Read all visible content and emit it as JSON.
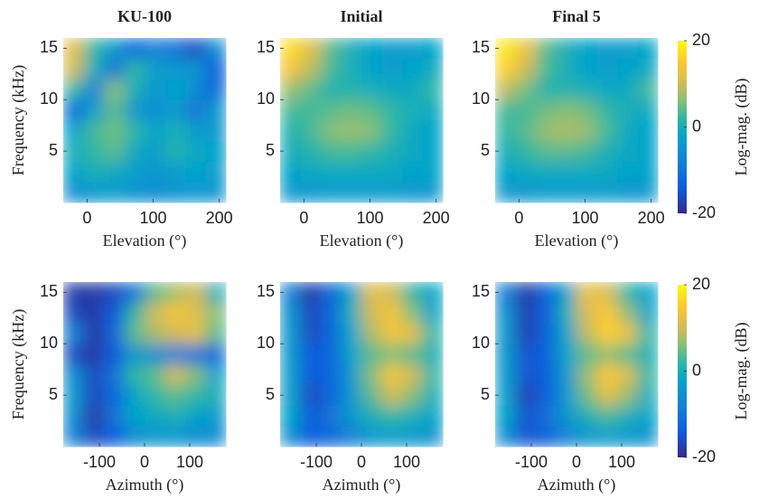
{
  "chart_data": [
    {
      "type": "heatmap",
      "title": "KU-100",
      "xlabel": "Elevation (°)",
      "ylabel": "Frequency (kHz)",
      "xlim": [
        -36,
        210
      ],
      "ylim": [
        0,
        16
      ],
      "xticks": [
        0,
        100,
        200
      ],
      "yticks": [
        5,
        10,
        15
      ],
      "colormap": "parula",
      "clim": [
        -20,
        20
      ],
      "z": [
        [
          -6,
          -4,
          -3,
          -5,
          -6,
          -5,
          -4,
          -5
        ],
        [
          -2,
          0,
          -1,
          -3,
          -4,
          -3,
          -2,
          -3
        ],
        [
          0,
          2,
          4,
          -1,
          -3,
          1,
          -1,
          -2
        ],
        [
          -2,
          3,
          5,
          2,
          -2,
          0,
          -3,
          -4
        ],
        [
          -12,
          -3,
          4,
          -4,
          -6,
          -3,
          -10,
          -4
        ],
        [
          2,
          -8,
          6,
          0,
          -4,
          -2,
          -6,
          -12
        ],
        [
          10,
          0,
          -10,
          2,
          -3,
          -4,
          -4,
          -14
        ],
        [
          12,
          2,
          -4,
          -12,
          -8,
          -10,
          -16,
          -6
        ]
      ]
    },
    {
      "type": "heatmap",
      "title": "Initial",
      "xlabel": "Elevation (°)",
      "xlim": [
        -36,
        210
      ],
      "ylim": [
        0,
        16
      ],
      "xticks": [
        0,
        100,
        200
      ],
      "yticks": [
        5,
        10,
        15
      ],
      "colormap": "parula",
      "clim": [
        -20,
        20
      ],
      "z": [
        [
          -4,
          -4,
          -3,
          -3,
          -3,
          -3,
          -4,
          -4
        ],
        [
          -2,
          -1,
          -1,
          -1,
          -1,
          -1,
          -2,
          -2
        ],
        [
          0,
          1,
          3,
          3,
          2,
          0,
          -1,
          -2
        ],
        [
          1,
          3,
          6,
          7,
          6,
          2,
          -1,
          -2
        ],
        [
          3,
          3,
          4,
          5,
          4,
          2,
          0,
          -1
        ],
        [
          7,
          4,
          1,
          1,
          0,
          -1,
          -1,
          2
        ],
        [
          14,
          9,
          3,
          0,
          -2,
          -3,
          -2,
          -1
        ],
        [
          17,
          12,
          4,
          0,
          -2,
          -3,
          -3,
          -2
        ]
      ]
    },
    {
      "type": "heatmap",
      "title": "Final 5",
      "xlabel": "Elevation (°)",
      "xlim": [
        -36,
        210
      ],
      "ylim": [
        0,
        16
      ],
      "xticks": [
        0,
        100,
        200
      ],
      "yticks": [
        5,
        10,
        15
      ],
      "colormap": "parula",
      "clim": [
        -20,
        20
      ],
      "colorbar": {
        "label": "Log-mag. (dB)",
        "ticks": [
          -20,
          0,
          20
        ]
      },
      "z": [
        [
          -4,
          -4,
          -3,
          -3,
          -3,
          -3,
          -4,
          -4
        ],
        [
          -2,
          -1,
          -1,
          -1,
          -1,
          -1,
          -2,
          -2
        ],
        [
          0,
          2,
          4,
          4,
          3,
          0,
          -1,
          -2
        ],
        [
          2,
          4,
          7,
          8,
          7,
          3,
          -1,
          -2
        ],
        [
          3,
          3,
          5,
          6,
          5,
          2,
          0,
          -1
        ],
        [
          9,
          5,
          1,
          1,
          0,
          -1,
          -1,
          3
        ],
        [
          16,
          10,
          3,
          0,
          -2,
          -3,
          -2,
          -1
        ],
        [
          18,
          13,
          4,
          0,
          -2,
          -3,
          -3,
          -2
        ]
      ]
    },
    {
      "type": "heatmap",
      "xlabel": "Azimuth (°)",
      "ylabel": "Frequency (kHz)",
      "xlim": [
        -180,
        180
      ],
      "ylim": [
        0,
        16
      ],
      "xticks": [
        -100,
        0,
        100
      ],
      "yticks": [
        5,
        10,
        15
      ],
      "colormap": "parula",
      "clim": [
        -20,
        20
      ],
      "z": [
        [
          -8,
          -16,
          -14,
          -6,
          -4,
          -4,
          -6,
          -6
        ],
        [
          -6,
          -18,
          -10,
          -2,
          -1,
          0,
          -2,
          -4
        ],
        [
          -4,
          -16,
          -12,
          -2,
          2,
          4,
          2,
          0
        ],
        [
          -6,
          -16,
          -10,
          2,
          4,
          10,
          6,
          -2
        ],
        [
          -16,
          -18,
          -14,
          -4,
          -6,
          -8,
          -10,
          -12
        ],
        [
          -8,
          -18,
          -12,
          4,
          8,
          10,
          12,
          4
        ],
        [
          -16,
          -18,
          -14,
          2,
          10,
          14,
          12,
          6
        ],
        [
          -18,
          -18,
          -16,
          -10,
          4,
          8,
          10,
          0
        ]
      ]
    },
    {
      "type": "heatmap",
      "xlabel": "Azimuth (°)",
      "xlim": [
        -180,
        180
      ],
      "ylim": [
        0,
        16
      ],
      "xticks": [
        -100,
        0,
        100
      ],
      "yticks": [
        5,
        10,
        15
      ],
      "colormap": "parula",
      "clim": [
        -20,
        20
      ],
      "z": [
        [
          -6,
          -14,
          -12,
          -8,
          -4,
          -3,
          -4,
          -5
        ],
        [
          -2,
          -14,
          -10,
          -4,
          0,
          2,
          0,
          -2
        ],
        [
          -3,
          -16,
          -12,
          -4,
          4,
          10,
          6,
          0
        ],
        [
          -3,
          -14,
          -12,
          -4,
          6,
          14,
          10,
          2
        ],
        [
          -4,
          -14,
          -12,
          -2,
          4,
          6,
          4,
          0
        ],
        [
          -4,
          -16,
          -12,
          -2,
          8,
          14,
          12,
          2
        ],
        [
          -5,
          -16,
          -12,
          0,
          10,
          14,
          6,
          -2
        ],
        [
          -8,
          -18,
          -12,
          -2,
          12,
          10,
          2,
          -2
        ]
      ]
    },
    {
      "type": "heatmap",
      "xlabel": "Azimuth (°)",
      "xlim": [
        -180,
        180
      ],
      "ylim": [
        0,
        16
      ],
      "xticks": [
        -100,
        0,
        100
      ],
      "yticks": [
        5,
        10,
        15
      ],
      "colormap": "parula",
      "clim": [
        -20,
        20
      ],
      "colorbar": {
        "label": "Log-mag. (dB)",
        "ticks": [
          -20,
          0,
          20
        ]
      },
      "z": [
        [
          -6,
          -15,
          -13,
          -8,
          -4,
          -3,
          -4,
          -5
        ],
        [
          -2,
          -15,
          -11,
          -4,
          0,
          3,
          0,
          -2
        ],
        [
          -3,
          -17,
          -13,
          -4,
          5,
          12,
          7,
          0
        ],
        [
          -3,
          -15,
          -13,
          -4,
          7,
          15,
          11,
          2
        ],
        [
          -4,
          -15,
          -13,
          -2,
          4,
          7,
          4,
          0
        ],
        [
          -4,
          -17,
          -13,
          -2,
          9,
          16,
          13,
          2
        ],
        [
          -5,
          -17,
          -13,
          0,
          11,
          15,
          7,
          -2
        ],
        [
          -8,
          -18,
          -13,
          -2,
          13,
          11,
          2,
          -2
        ]
      ]
    }
  ]
}
